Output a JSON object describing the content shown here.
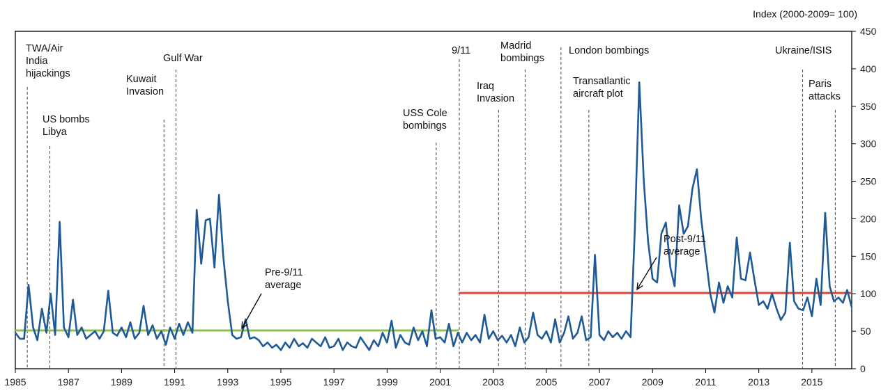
{
  "chart_data": {
    "type": "line",
    "units_label": "Index (2000-2009= 100)",
    "xlim": [
      1985.0,
      2016.5
    ],
    "ylim": [
      0,
      450
    ],
    "x_ticks": [
      "1985",
      "1987",
      "1989",
      "1991",
      "1993",
      "1995",
      "1997",
      "1999",
      "2001",
      "2003",
      "2005",
      "2007",
      "2009",
      "2011",
      "2013",
      "2015"
    ],
    "y_ticks": [
      "0",
      "50",
      "100",
      "150",
      "200",
      "250",
      "300",
      "350",
      "400",
      "450"
    ],
    "grid": false,
    "colors": {
      "series": "#1f5a96",
      "pre_avg": "#8cc04f",
      "post_avg": "#d9473f",
      "event_line": "#555555",
      "axis": "#000000"
    },
    "series": [
      {
        "values": [
          [
            1985.0,
            48
          ],
          [
            1985.17,
            40
          ],
          [
            1985.33,
            40
          ],
          [
            1985.5,
            112
          ],
          [
            1985.67,
            55
          ],
          [
            1985.83,
            38
          ],
          [
            1986.0,
            80
          ],
          [
            1986.17,
            48
          ],
          [
            1986.33,
            100
          ],
          [
            1986.5,
            45
          ],
          [
            1986.67,
            196
          ],
          [
            1986.83,
            55
          ],
          [
            1987.0,
            42
          ],
          [
            1987.17,
            92
          ],
          [
            1987.33,
            45
          ],
          [
            1987.5,
            55
          ],
          [
            1987.67,
            40
          ],
          [
            1987.83,
            45
          ],
          [
            1988.0,
            50
          ],
          [
            1988.17,
            40
          ],
          [
            1988.33,
            50
          ],
          [
            1988.5,
            104
          ],
          [
            1988.67,
            48
          ],
          [
            1988.83,
            44
          ],
          [
            1989.0,
            55
          ],
          [
            1989.17,
            42
          ],
          [
            1989.33,
            62
          ],
          [
            1989.5,
            40
          ],
          [
            1989.67,
            48
          ],
          [
            1989.83,
            84
          ],
          [
            1990.0,
            45
          ],
          [
            1990.17,
            58
          ],
          [
            1990.33,
            40
          ],
          [
            1990.5,
            50
          ],
          [
            1990.67,
            32
          ],
          [
            1990.83,
            55
          ],
          [
            1991.0,
            40
          ],
          [
            1991.17,
            60
          ],
          [
            1991.33,
            45
          ],
          [
            1991.5,
            62
          ],
          [
            1991.67,
            48
          ],
          [
            1991.83,
            212
          ],
          [
            1992.0,
            140
          ],
          [
            1992.17,
            198
          ],
          [
            1992.33,
            200
          ],
          [
            1992.5,
            135
          ],
          [
            1992.67,
            232
          ],
          [
            1992.83,
            150
          ],
          [
            1993.0,
            90
          ],
          [
            1993.17,
            45
          ],
          [
            1993.33,
            40
          ],
          [
            1993.5,
            42
          ],
          [
            1993.67,
            66
          ],
          [
            1993.83,
            40
          ],
          [
            1994.0,
            42
          ],
          [
            1994.17,
            38
          ],
          [
            1994.33,
            30
          ],
          [
            1994.5,
            35
          ],
          [
            1994.67,
            28
          ],
          [
            1994.83,
            32
          ],
          [
            1995.0,
            25
          ],
          [
            1995.17,
            35
          ],
          [
            1995.33,
            28
          ],
          [
            1995.5,
            40
          ],
          [
            1995.67,
            30
          ],
          [
            1995.83,
            34
          ],
          [
            1996.0,
            28
          ],
          [
            1996.17,
            40
          ],
          [
            1996.33,
            35
          ],
          [
            1996.5,
            30
          ],
          [
            1996.67,
            42
          ],
          [
            1996.83,
            28
          ],
          [
            1997.0,
            30
          ],
          [
            1997.17,
            40
          ],
          [
            1997.33,
            25
          ],
          [
            1997.5,
            35
          ],
          [
            1997.67,
            30
          ],
          [
            1997.83,
            28
          ],
          [
            1998.0,
            42
          ],
          [
            1998.17,
            33
          ],
          [
            1998.33,
            25
          ],
          [
            1998.5,
            38
          ],
          [
            1998.67,
            30
          ],
          [
            1998.83,
            48
          ],
          [
            1999.0,
            35
          ],
          [
            1999.17,
            64
          ],
          [
            1999.33,
            28
          ],
          [
            1999.5,
            45
          ],
          [
            1999.67,
            35
          ],
          [
            1999.83,
            32
          ],
          [
            2000.0,
            55
          ],
          [
            2000.17,
            38
          ],
          [
            2000.33,
            50
          ],
          [
            2000.5,
            30
          ],
          [
            2000.67,
            78
          ],
          [
            2000.83,
            40
          ],
          [
            2001.0,
            42
          ],
          [
            2001.17,
            35
          ],
          [
            2001.33,
            60
          ],
          [
            2001.5,
            30
          ],
          [
            2001.67,
            48
          ],
          [
            2001.83,
            35
          ],
          [
            2002.0,
            48
          ],
          [
            2002.17,
            38
          ],
          [
            2002.33,
            45
          ],
          [
            2002.5,
            35
          ],
          [
            2002.67,
            72
          ],
          [
            2002.83,
            40
          ],
          [
            2003.0,
            50
          ],
          [
            2003.17,
            38
          ],
          [
            2003.33,
            44
          ],
          [
            2003.5,
            35
          ],
          [
            2003.67,
            45
          ],
          [
            2003.83,
            30
          ],
          [
            2004.0,
            55
          ],
          [
            2004.17,
            35
          ],
          [
            2004.33,
            42
          ],
          [
            2004.5,
            75
          ],
          [
            2004.67,
            45
          ],
          [
            2004.83,
            40
          ],
          [
            2005.0,
            50
          ],
          [
            2005.17,
            35
          ],
          [
            2005.33,
            66
          ],
          [
            2005.5,
            35
          ],
          [
            2005.67,
            48
          ],
          [
            2005.83,
            70
          ],
          [
            2006.0,
            40
          ],
          [
            2006.17,
            48
          ],
          [
            2006.33,
            70
          ],
          [
            2006.5,
            38
          ],
          [
            2006.67,
            42
          ],
          [
            2006.83,
            152
          ],
          [
            2007.0,
            45
          ],
          [
            2007.17,
            38
          ],
          [
            2007.33,
            50
          ],
          [
            2007.5,
            42
          ],
          [
            2007.67,
            48
          ],
          [
            2007.83,
            40
          ],
          [
            2008.0,
            50
          ],
          [
            2008.17,
            42
          ],
          [
            2008.33,
            185
          ],
          [
            2008.5,
            382
          ],
          [
            2008.67,
            250
          ],
          [
            2008.83,
            170
          ],
          [
            2009.0,
            120
          ],
          [
            2009.17,
            115
          ],
          [
            2009.33,
            180
          ],
          [
            2009.5,
            195
          ],
          [
            2009.67,
            135
          ],
          [
            2009.83,
            110
          ],
          [
            2010.0,
            218
          ],
          [
            2010.17,
            180
          ],
          [
            2010.33,
            190
          ],
          [
            2010.5,
            240
          ],
          [
            2010.67,
            266
          ],
          [
            2010.83,
            200
          ],
          [
            2011.0,
            150
          ],
          [
            2011.17,
            100
          ],
          [
            2011.33,
            75
          ],
          [
            2011.5,
            115
          ],
          [
            2011.67,
            88
          ],
          [
            2011.83,
            110
          ],
          [
            2012.0,
            95
          ],
          [
            2012.17,
            175
          ],
          [
            2012.33,
            120
          ],
          [
            2012.5,
            118
          ],
          [
            2012.67,
            155
          ],
          [
            2012.83,
            120
          ],
          [
            2013.0,
            85
          ],
          [
            2013.17,
            90
          ],
          [
            2013.33,
            80
          ],
          [
            2013.5,
            100
          ],
          [
            2013.67,
            80
          ],
          [
            2013.83,
            65
          ],
          [
            2014.0,
            75
          ],
          [
            2014.17,
            168
          ],
          [
            2014.33,
            90
          ],
          [
            2014.5,
            80
          ],
          [
            2014.67,
            78
          ],
          [
            2014.83,
            95
          ],
          [
            2015.0,
            70
          ],
          [
            2015.17,
            120
          ],
          [
            2015.33,
            85
          ],
          [
            2015.5,
            208
          ],
          [
            2015.67,
            110
          ],
          [
            2015.83,
            90
          ],
          [
            2016.0,
            95
          ],
          [
            2016.17,
            88
          ],
          [
            2016.33,
            105
          ],
          [
            2016.5,
            82
          ]
        ]
      }
    ],
    "averages": [
      {
        "label": "Pre-9/11 average",
        "value": 51,
        "x_range": [
          1985.0,
          2001.7
        ]
      },
      {
        "label": "Post-9/11 average",
        "value": 101,
        "x_range": [
          2001.7,
          2016.5
        ]
      }
    ],
    "events": [
      {
        "label": "TWA/Air India hijackings",
        "x": 1985.45
      },
      {
        "label": "US bombs Libya",
        "x": 1986.3
      },
      {
        "label": "Kuwait Invasion",
        "x": 1990.6
      },
      {
        "label": "Gulf War",
        "x": 1991.05
      },
      {
        "label": "USS Cole bombings",
        "x": 2000.85
      },
      {
        "label": "9/11",
        "x": 2001.72
      },
      {
        "label": "Iraq Invasion",
        "x": 2003.2
      },
      {
        "label": "Madrid bombings",
        "x": 2004.2
      },
      {
        "label": "London bombings",
        "x": 2005.55
      },
      {
        "label": "Transatlantic aircraft plot",
        "x": 2006.6
      },
      {
        "label": "Ukraine/ISIS",
        "x": 2014.65
      },
      {
        "label": "Paris attacks",
        "x": 2015.88
      }
    ]
  }
}
